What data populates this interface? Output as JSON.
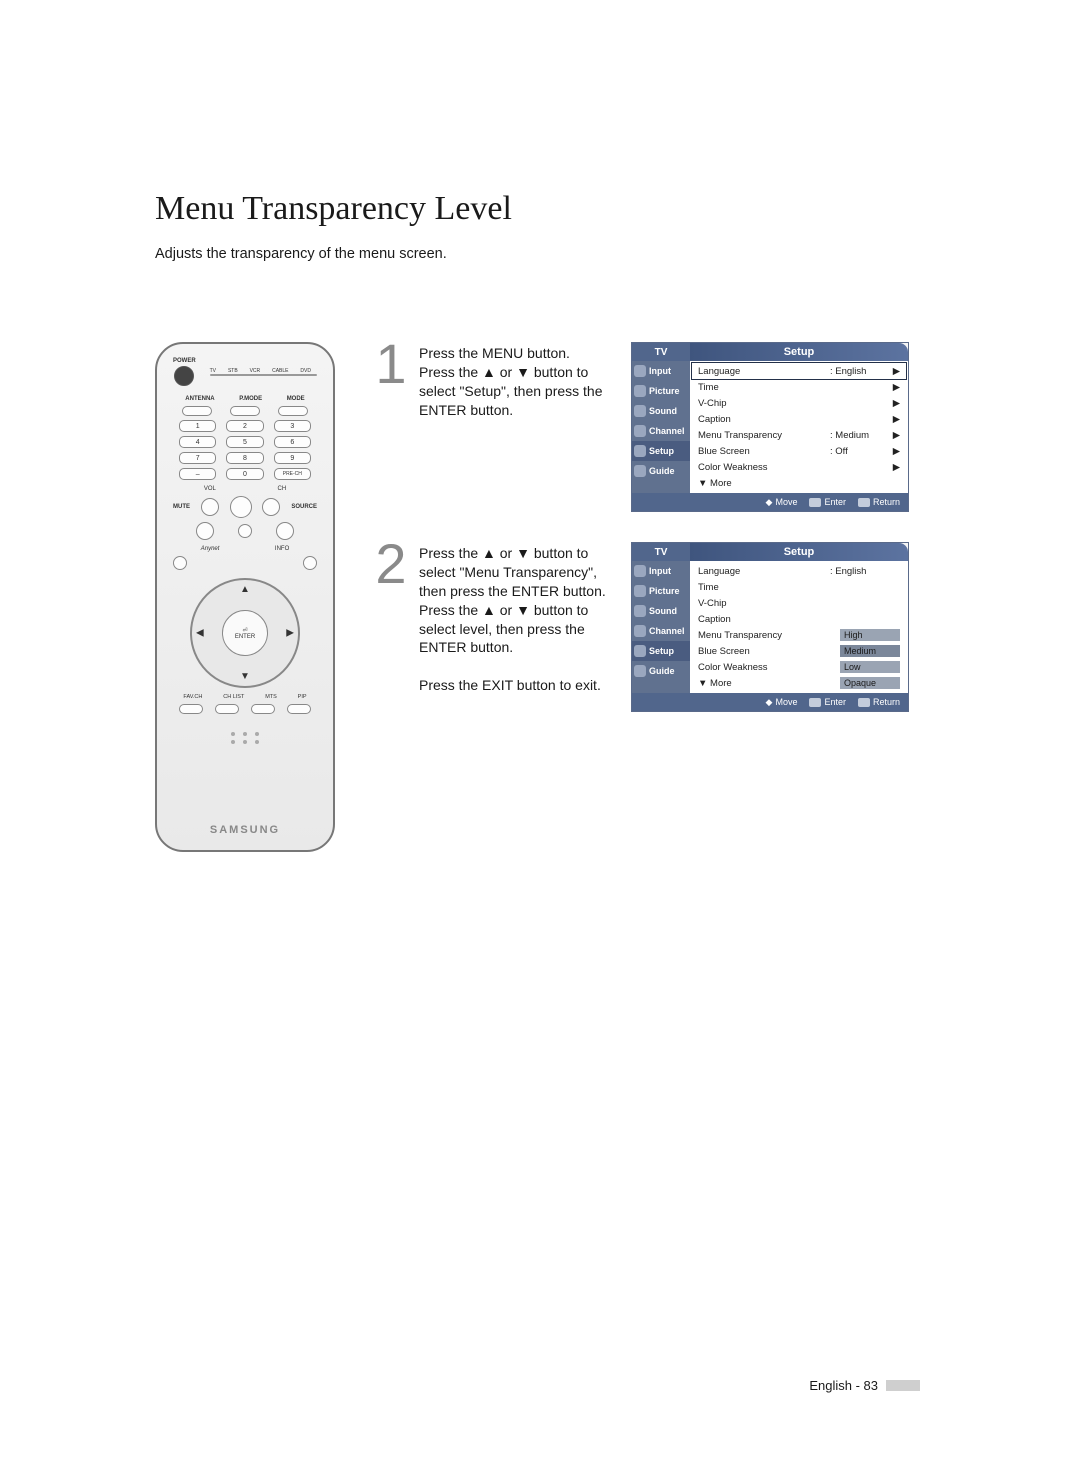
{
  "title": "Menu Transparency Level",
  "subtitle": "Adjusts the transparency of the menu screen.",
  "remote": {
    "power": "POWER",
    "mode_labels": [
      "TV",
      "STB",
      "VCR",
      "CABLE",
      "DVD"
    ],
    "row2": [
      "ANTENNA",
      "P.MODE",
      "MODE"
    ],
    "numbers": [
      "1",
      "2",
      "3",
      "4",
      "5",
      "6",
      "7",
      "8",
      "9",
      "–",
      "0",
      "PRE-CH"
    ],
    "vol": "VOL",
    "ch": "CH",
    "mute": "MUTE",
    "source": "SOURCE",
    "anynet": "Anynet",
    "info": "INFO",
    "enter": "ENTER",
    "bottom_row": [
      "FAV.CH",
      "CH LIST",
      "MTS",
      "PIP"
    ],
    "brand": "SAMSUNG"
  },
  "steps": [
    {
      "num": "1",
      "text": "Press the MENU button.\nPress the ▲ or ▼ button to select \"Setup\", then press the ENTER button."
    },
    {
      "num": "2",
      "text": "Press the ▲ or ▼ button to select \"Menu Transparency\", then press the ENTER button. Press the ▲ or ▼ button to select level, then press the ENTER button.\n\nPress the EXIT button to exit."
    }
  ],
  "osd_common": {
    "tv": "TV",
    "title": "Setup",
    "side": [
      "Input",
      "Picture",
      "Sound",
      "Channel",
      "Setup",
      "Guide"
    ],
    "footer_move": "Move",
    "footer_enter": "Enter",
    "footer_return": "Return",
    "more": "▼ More"
  },
  "osd1_rows": [
    {
      "label": "Language",
      "value": ": English",
      "arrow": "▶",
      "hl": true
    },
    {
      "label": "Time",
      "value": "",
      "arrow": "▶"
    },
    {
      "label": "V-Chip",
      "value": "",
      "arrow": "▶"
    },
    {
      "label": "Caption",
      "value": "",
      "arrow": "▶"
    },
    {
      "label": "Menu Transparency",
      "value": ": Medium",
      "arrow": "▶"
    },
    {
      "label": "Blue Screen",
      "value": ": Off",
      "arrow": "▶"
    },
    {
      "label": "Color Weakness",
      "value": "",
      "arrow": "▶"
    }
  ],
  "osd2_rows": [
    {
      "label": "Language",
      "value": ": English"
    },
    {
      "label": "Time",
      "value": ""
    },
    {
      "label": "V-Chip",
      "value": ""
    },
    {
      "label": "Caption",
      "value": ""
    },
    {
      "label": "Menu Transparency",
      "value": ""
    },
    {
      "label": "Blue Screen",
      "value": ""
    },
    {
      "label": "Color Weakness",
      "value": ""
    }
  ],
  "osd2_popup": [
    "High",
    "Medium",
    "Low",
    "Opaque"
  ],
  "osd2_popup_selected": 1,
  "footer": "English - 83"
}
